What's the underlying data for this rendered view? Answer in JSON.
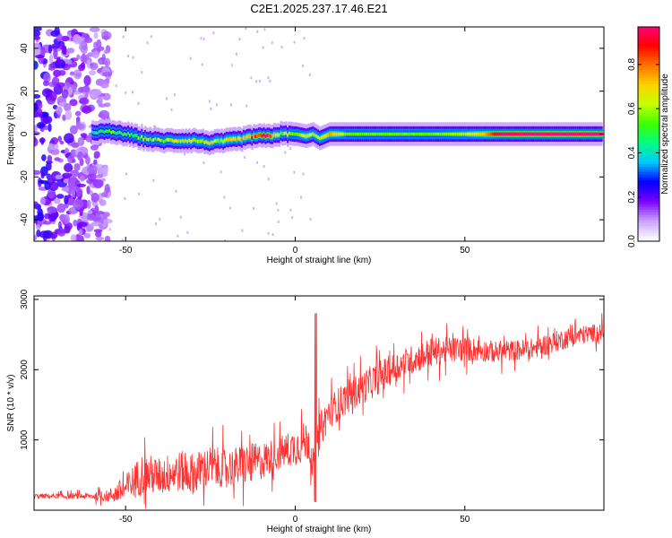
{
  "title": "C2E1.2025.237.17.46.E21",
  "chart_data": [
    {
      "type": "heatmap",
      "name": "spectrogram",
      "xlabel": "Height of straight line (km)",
      "ylabel": "Frequency (Hz)",
      "xlim": [
        -77,
        91
      ],
      "ylim": [
        -50,
        50
      ],
      "xticks": [
        -50,
        0,
        50
      ],
      "xtick_labels": [
        "-50",
        "0",
        "50"
      ],
      "yticks": [
        -40,
        -20,
        0,
        20,
        40
      ],
      "ytick_labels": [
        "-40",
        "-20",
        "0",
        "20",
        "40"
      ],
      "colorbar": {
        "label": "Normalized spectral amplitude",
        "range": [
          0,
          0.97
        ],
        "ticks": [
          0.0,
          0.2,
          0.4,
          0.6,
          0.8
        ],
        "tick_labels": [
          "0.0",
          "0.2",
          "0.4",
          "0.6",
          "0.8"
        ],
        "colormap": [
          "#ffffff",
          "#c8a0ff",
          "#7a00ff",
          "#0000ff",
          "#00c8ff",
          "#00ff80",
          "#40ff00",
          "#c8ff00",
          "#ffd000",
          "#ff7000",
          "#ff0000",
          "#ff0080"
        ]
      },
      "ridge": {
        "description_free": true,
        "x": [
          -60,
          -55,
          -50,
          -45,
          -40,
          -35,
          -30,
          -25,
          -20,
          -15,
          -12,
          -8,
          -5,
          0,
          3,
          5,
          7,
          10,
          15,
          20,
          30,
          40,
          50,
          55,
          60,
          70,
          80,
          90
        ],
        "freq": [
          1,
          1,
          0,
          -2,
          -3,
          -3,
          -3,
          -4,
          -3,
          -2,
          -1,
          -1,
          0,
          0,
          -1,
          0,
          -2,
          0,
          0,
          0,
          0,
          0,
          0,
          0,
          0,
          0,
          0,
          0
        ],
        "amplitude": [
          0.4,
          0.5,
          0.5,
          0.55,
          0.55,
          0.6,
          0.6,
          0.6,
          0.65,
          0.7,
          0.9,
          0.95,
          0.6,
          0.55,
          0.65,
          0.6,
          0.6,
          0.75,
          0.55,
          0.55,
          0.55,
          0.55,
          0.6,
          0.7,
          0.95,
          0.97,
          0.97,
          0.97
        ]
      },
      "noise_region_x": [
        -77,
        -55
      ]
    },
    {
      "type": "line",
      "name": "snr",
      "xlabel": "Height of straight line (km)",
      "ylabel": "SNR (10 * v/v)",
      "xlim": [
        -77,
        91
      ],
      "ylim": [
        0,
        3050
      ],
      "xticks": [
        -50,
        0,
        50
      ],
      "xtick_labels": [
        "-50",
        "0",
        "50"
      ],
      "yticks": [
        1000,
        2000,
        3000
      ],
      "ytick_labels": [
        "1000",
        "2000",
        "3000"
      ],
      "color": "#ff3030",
      "envelope": {
        "x": [
          -77,
          -70,
          -60,
          -55,
          -50,
          -45,
          -40,
          -35,
          -30,
          -25,
          -20,
          -15,
          -10,
          -5,
          0,
          4,
          6,
          7,
          10,
          15,
          20,
          25,
          30,
          40,
          50,
          60,
          70,
          80,
          91
        ],
        "mean": [
          200,
          200,
          200,
          200,
          300,
          520,
          480,
          560,
          520,
          620,
          600,
          640,
          700,
          800,
          900,
          1000,
          500,
          1100,
          1400,
          1600,
          1750,
          1900,
          2050,
          2250,
          2300,
          2250,
          2300,
          2450,
          2550
        ],
        "spread": [
          60,
          60,
          80,
          150,
          350,
          500,
          450,
          500,
          500,
          500,
          450,
          500,
          450,
          400,
          450,
          500,
          400,
          450,
          400,
          400,
          400,
          400,
          350,
          350,
          300,
          250,
          250,
          250,
          200
        ]
      }
    }
  ]
}
